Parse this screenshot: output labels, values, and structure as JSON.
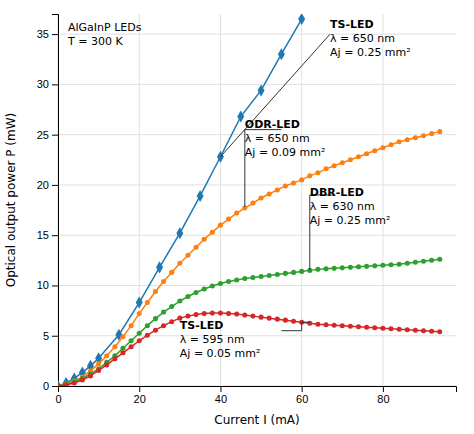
{
  "chart_data": {
    "type": "line",
    "xlabel": "Current I (mA)",
    "ylabel": "Optical output power P (mW)",
    "xlim": [
      0,
      98
    ],
    "ylim": [
      0,
      37
    ],
    "xticks": [
      0,
      20,
      40,
      60,
      80
    ],
    "yticks": [
      0,
      5,
      10,
      15,
      20,
      25,
      30,
      35
    ],
    "grid": true,
    "series": [
      {
        "marker": "diamond",
        "x": [
          0,
          2,
          4,
          6,
          8,
          10,
          15,
          20,
          25,
          30,
          35,
          40,
          45,
          50,
          55,
          60
        ],
        "values": [
          0,
          0.3,
          0.75,
          1.35,
          2.0,
          2.75,
          5.1,
          8.3,
          11.8,
          15.2,
          18.9,
          22.8,
          26.8,
          29.4,
          33.0,
          36.5
        ]
      },
      {
        "marker": "circle",
        "x": [
          0,
          2,
          4,
          6,
          8,
          10,
          12,
          14,
          16,
          18,
          20,
          22,
          24,
          26,
          28,
          30,
          32,
          34,
          36,
          38,
          40,
          42,
          44,
          46,
          48,
          50,
          52,
          54,
          56,
          58,
          60,
          62,
          64,
          66,
          68,
          70,
          72,
          74,
          76,
          78,
          80,
          82,
          84,
          86,
          88,
          90,
          92,
          94
        ],
        "values": [
          0,
          0.2,
          0.5,
          0.9,
          1.5,
          2.2,
          3.0,
          3.9,
          4.9,
          6.0,
          7.2,
          8.3,
          9.4,
          10.4,
          11.3,
          12.2,
          13.0,
          13.8,
          14.6,
          15.3,
          16.0,
          16.6,
          17.2,
          17.7,
          18.2,
          18.7,
          19.1,
          19.5,
          19.9,
          20.2,
          20.5,
          20.9,
          21.2,
          21.6,
          21.9,
          22.2,
          22.5,
          22.8,
          23.1,
          23.4,
          23.7,
          24.0,
          24.3,
          24.5,
          24.7,
          24.9,
          25.1,
          25.3
        ]
      },
      {
        "marker": "circle",
        "x": [
          0,
          2,
          4,
          6,
          8,
          10,
          12,
          14,
          16,
          18,
          20,
          22,
          24,
          26,
          28,
          30,
          32,
          34,
          36,
          38,
          40,
          42,
          44,
          46,
          48,
          50,
          52,
          54,
          56,
          58,
          60,
          62,
          64,
          66,
          68,
          70,
          72,
          74,
          76,
          78,
          80,
          82,
          84,
          86,
          88,
          90,
          92,
          94
        ],
        "values": [
          0,
          0.15,
          0.4,
          0.75,
          1.2,
          1.7,
          2.35,
          3.0,
          3.75,
          4.5,
          5.25,
          6.0,
          6.7,
          7.35,
          7.9,
          8.45,
          8.9,
          9.3,
          9.65,
          9.95,
          10.2,
          10.4,
          10.55,
          10.7,
          10.8,
          10.9,
          11.0,
          11.1,
          11.2,
          11.3,
          11.4,
          11.5,
          11.6,
          11.65,
          11.7,
          11.75,
          11.8,
          11.85,
          11.9,
          11.95,
          12.0,
          12.05,
          12.1,
          12.2,
          12.3,
          12.4,
          12.5,
          12.6
        ]
      },
      {
        "marker": "circle",
        "x": [
          0,
          2,
          4,
          6,
          8,
          10,
          12,
          14,
          16,
          18,
          20,
          22,
          24,
          26,
          28,
          30,
          32,
          34,
          36,
          38,
          40,
          42,
          44,
          46,
          48,
          50,
          52,
          54,
          56,
          58,
          60,
          62,
          64,
          66,
          68,
          70,
          72,
          74,
          76,
          78,
          80,
          82,
          84,
          86,
          88,
          90,
          92,
          94
        ],
        "values": [
          0,
          0.1,
          0.3,
          0.6,
          1.0,
          1.55,
          2.1,
          2.7,
          3.3,
          3.9,
          4.5,
          5.05,
          5.55,
          6.0,
          6.4,
          6.75,
          6.95,
          7.1,
          7.2,
          7.25,
          7.25,
          7.2,
          7.15,
          7.05,
          6.95,
          6.85,
          6.75,
          6.65,
          6.55,
          6.45,
          6.35,
          6.25,
          6.15,
          6.1,
          6.05,
          6.0,
          5.95,
          5.9,
          5.85,
          5.8,
          5.75,
          5.7,
          5.65,
          5.6,
          5.55,
          5.5,
          5.45,
          5.4
        ]
      }
    ],
    "annotations": [
      {
        "text": [
          "AlGaInP LEDs",
          "T = 300 K"
        ]
      },
      {
        "text": [
          "TS-LED",
          "λ = 650 nm",
          "Aj = 0.25 mm²"
        ],
        "x": 67,
        "y": 36.5,
        "lines": [
          [
            [
              67,
              35
            ],
            [
              40,
              22.8
            ]
          ]
        ]
      },
      {
        "text": [
          "ODR-LED",
          "λ = 650 nm",
          "Aj = 0.09 mm²"
        ],
        "x": 46,
        "y": 26.5,
        "lines": [
          [
            [
              55,
              25.5
            ],
            [
              46,
              25.5
            ],
            [
              46,
              17.8
            ]
          ]
        ]
      },
      {
        "text": [
          "DBR-LED",
          "λ = 630 nm",
          "Aj = 0.25 mm²"
        ],
        "x": 62,
        "y": 19.8,
        "lines": [
          [
            [
              68,
              19.0
            ],
            [
              62,
              19.0
            ],
            [
              62,
              11.5
            ]
          ]
        ]
      },
      {
        "text": [
          "TS-LED",
          "λ = 595 nm",
          "Aj = 0.05 mm²"
        ],
        "x": 30,
        "y": 6.5,
        "lines": [
          [
            [
              62,
              6.35
            ],
            [
              60,
              6.35
            ]
          ],
          [
            [
              55,
              5.5
            ],
            [
              60,
              5.5
            ],
            [
              60,
              6.35
            ]
          ]
        ]
      }
    ]
  }
}
